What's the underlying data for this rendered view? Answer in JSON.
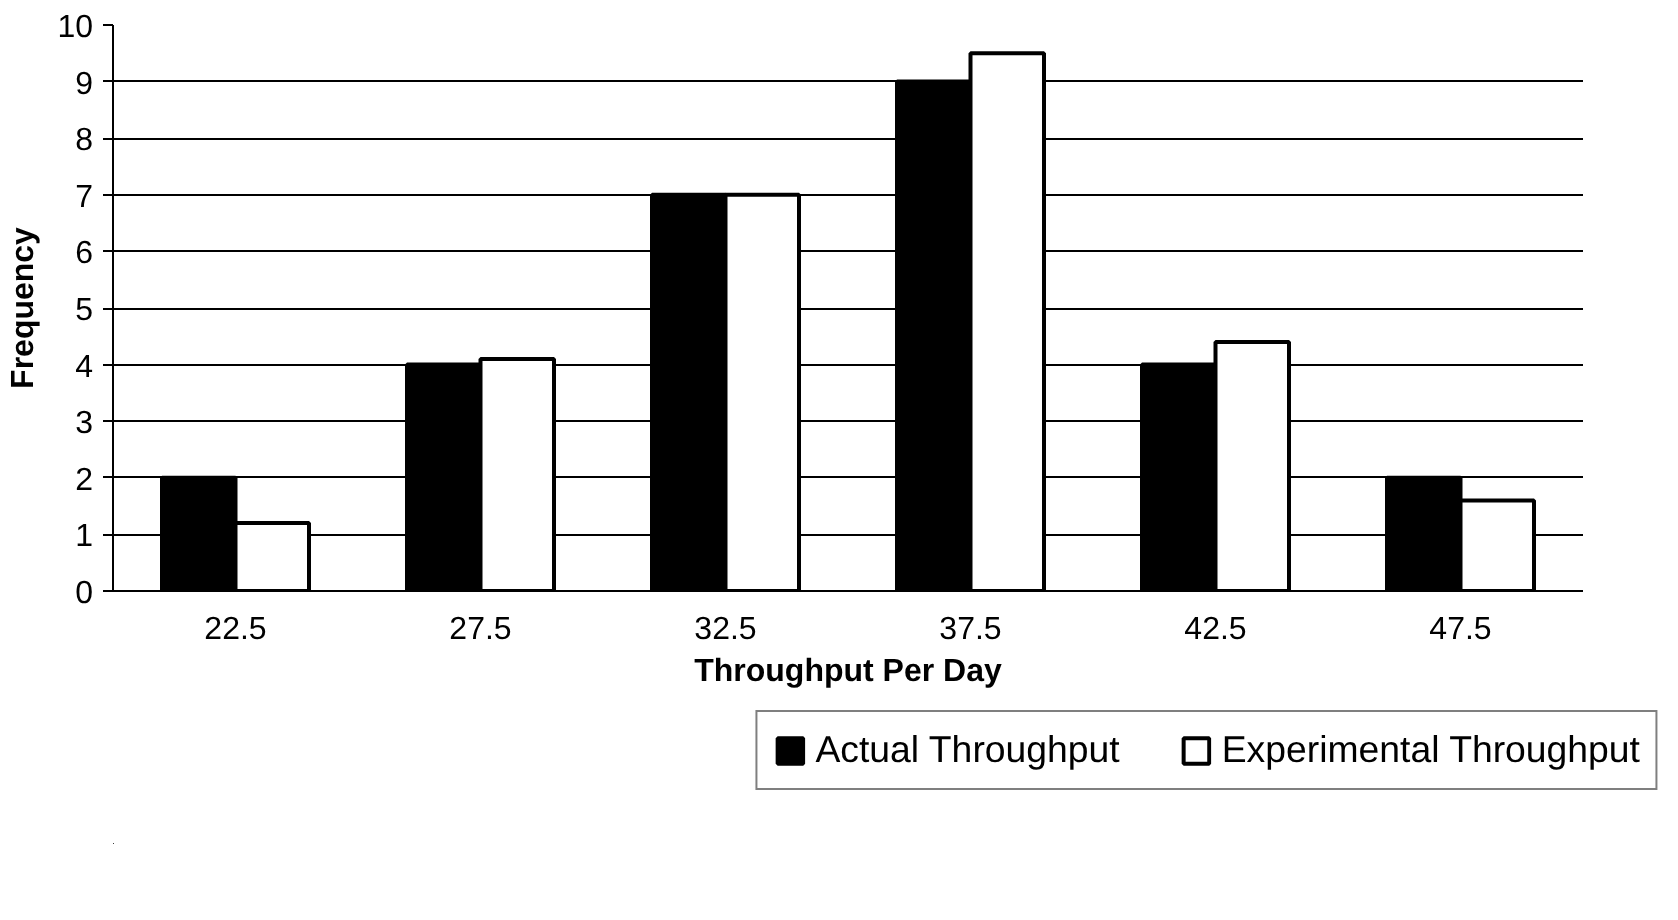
{
  "chart_data": {
    "type": "bar",
    "xlabel": "Throughput Per Day",
    "ylabel": "Frequency",
    "categories": [
      "22.5",
      "27.5",
      "32.5",
      "37.5",
      "42.5",
      "47.5"
    ],
    "series": [
      {
        "name": "Actual Throughput",
        "color": "#000000",
        "values": [
          2,
          4,
          7,
          9,
          4,
          2
        ]
      },
      {
        "name": "Experimental Throughput",
        "color": "#ffffff",
        "values": [
          1.2,
          4.1,
          7.0,
          9.5,
          4.4,
          1.6
        ]
      }
    ],
    "ylim": [
      0,
      10
    ],
    "yticks": [
      0,
      1,
      2,
      3,
      4,
      5,
      6,
      7,
      8,
      9,
      10
    ],
    "grid": "y",
    "legend": "bottom"
  }
}
